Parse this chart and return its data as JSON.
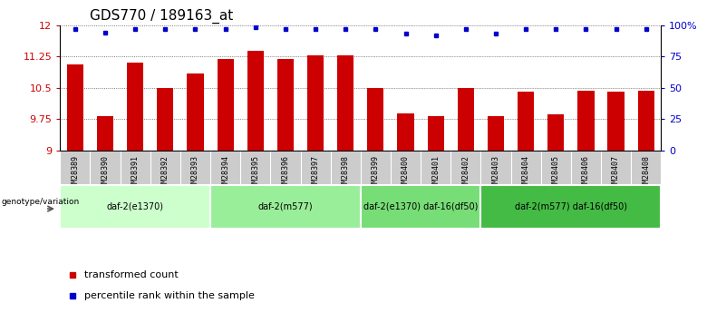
{
  "title": "GDS770 / 189163_at",
  "samples": [
    "GSM28389",
    "GSM28390",
    "GSM28391",
    "GSM28392",
    "GSM28393",
    "GSM28394",
    "GSM28395",
    "GSM28396",
    "GSM28397",
    "GSM28398",
    "GSM28399",
    "GSM28400",
    "GSM28401",
    "GSM28402",
    "GSM28403",
    "GSM28404",
    "GSM28405",
    "GSM28406",
    "GSM28407",
    "GSM28408"
  ],
  "bar_values": [
    11.05,
    9.82,
    11.1,
    10.5,
    10.85,
    11.18,
    11.38,
    11.18,
    11.27,
    11.27,
    10.5,
    9.88,
    9.82,
    10.5,
    9.82,
    10.4,
    9.87,
    10.42,
    10.4,
    10.42
  ],
  "percentile_values": [
    97,
    94,
    97,
    97,
    97,
    97,
    98,
    97,
    97,
    97,
    97,
    93,
    92,
    97,
    93,
    97,
    97,
    97,
    97,
    97
  ],
  "ylim_left": [
    9,
    12
  ],
  "ylim_right": [
    0,
    100
  ],
  "yticks_left": [
    9,
    9.75,
    10.5,
    11.25,
    12
  ],
  "yticks_right": [
    0,
    25,
    50,
    75,
    100
  ],
  "ytick_labels_left": [
    "9",
    "9.75",
    "10.5",
    "11.25",
    "12"
  ],
  "ytick_labels_right": [
    "0",
    "25",
    "50",
    "75",
    "100%"
  ],
  "bar_color": "#cc0000",
  "dot_color": "#0000cc",
  "groups": [
    {
      "label": "daf-2(e1370)",
      "start": 0,
      "end": 4,
      "color": "#ccffcc"
    },
    {
      "label": "daf-2(m577)",
      "start": 5,
      "end": 9,
      "color": "#99ee99"
    },
    {
      "label": "daf-2(e1370) daf-16(df50)",
      "start": 10,
      "end": 13,
      "color": "#77dd77"
    },
    {
      "label": "daf-2(m577) daf-16(df50)",
      "start": 14,
      "end": 19,
      "color": "#44bb44"
    }
  ],
  "genotype_label": "genotype/variation",
  "legend_items": [
    {
      "label": "transformed count",
      "color": "#cc0000"
    },
    {
      "label": "percentile rank within the sample",
      "color": "#0000cc"
    }
  ],
  "background_color": "#ffffff",
  "sample_band_color": "#cccccc",
  "grid_color": "#555555",
  "title_fontsize": 11,
  "label_fontsize": 7,
  "bar_width": 0.55
}
